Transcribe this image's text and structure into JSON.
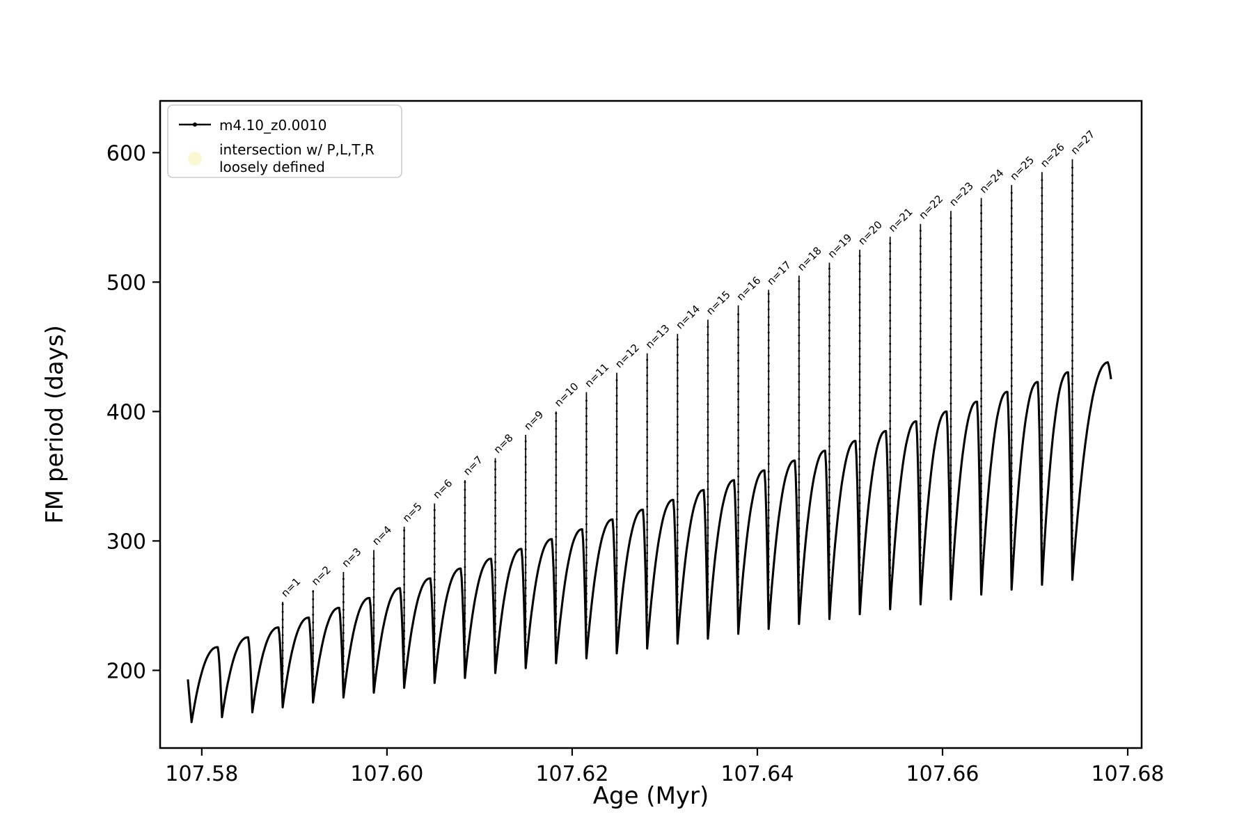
{
  "figure": {
    "background": "#ffffff",
    "line_color": "#000000",
    "spine_color": "#000000",
    "legend_border_color": "#cccccc"
  },
  "chart_data": {
    "type": "line",
    "title": "",
    "xlabel": "Age (Myr)",
    "ylabel": "FM period (days)",
    "xlim": [
      107.5755,
      107.6815
    ],
    "ylim": [
      140,
      640
    ],
    "xticks": [
      107.58,
      107.6,
      107.62,
      107.64,
      107.66,
      107.68
    ],
    "xtick_labels": [
      "107.58",
      "107.60",
      "107.62",
      "107.64",
      "107.66",
      "107.68"
    ],
    "yticks": [
      200,
      300,
      400,
      500,
      600
    ],
    "ytick_labels": [
      "200",
      "300",
      "400",
      "500",
      "600"
    ],
    "grid": false,
    "legend": {
      "position": "upper-left",
      "series_label": "m4.10_z0.0010",
      "intersection_line1": "intersection w/ P,L,T,R",
      "intersection_line2": "loosely defined",
      "intersection_marker_color": "#f7f3ae"
    },
    "curve": {
      "description": "sawtooth-scalloped rising curve: repeated arcs with sharp cusps; a narrow vertical spike rises from each cusp, spikes labeled n=1..n=27",
      "x_start": 107.5785,
      "y_start": 193,
      "cusp_start_x": 107.5789,
      "cusp_spacing": 0.00328,
      "num_cusps": 30,
      "cusp_min_start": 160,
      "cusp_min_end": 270,
      "arc_max_start": 218,
      "arc_max_end": 438,
      "x_end": 107.6782,
      "y_end": 425
    },
    "spikes": [
      {
        "n": 1,
        "label": "n=1",
        "x": 107.58874,
        "top": 253
      },
      {
        "n": 2,
        "label": "n=2",
        "x": 107.59202,
        "top": 262
      },
      {
        "n": 3,
        "label": "n=3",
        "x": 107.5953,
        "top": 276
      },
      {
        "n": 4,
        "label": "n=4",
        "x": 107.59858,
        "top": 293
      },
      {
        "n": 5,
        "label": "n=5",
        "x": 107.60186,
        "top": 311
      },
      {
        "n": 6,
        "label": "n=6",
        "x": 107.60514,
        "top": 329
      },
      {
        "n": 7,
        "label": "n=7",
        "x": 107.60842,
        "top": 347
      },
      {
        "n": 8,
        "label": "n=8",
        "x": 107.6117,
        "top": 364
      },
      {
        "n": 9,
        "label": "n=9",
        "x": 107.61498,
        "top": 382
      },
      {
        "n": 10,
        "label": "n=10",
        "x": 107.61826,
        "top": 400
      },
      {
        "n": 11,
        "label": "n=11",
        "x": 107.62154,
        "top": 415
      },
      {
        "n": 12,
        "label": "n=12",
        "x": 107.62482,
        "top": 430
      },
      {
        "n": 13,
        "label": "n=13",
        "x": 107.6281,
        "top": 445
      },
      {
        "n": 14,
        "label": "n=14",
        "x": 107.63138,
        "top": 460
      },
      {
        "n": 15,
        "label": "n=15",
        "x": 107.63466,
        "top": 471
      },
      {
        "n": 16,
        "label": "n=16",
        "x": 107.63794,
        "top": 482
      },
      {
        "n": 17,
        "label": "n=17",
        "x": 107.64122,
        "top": 494
      },
      {
        "n": 18,
        "label": "n=18",
        "x": 107.6445,
        "top": 505
      },
      {
        "n": 19,
        "label": "n=19",
        "x": 107.64778,
        "top": 515
      },
      {
        "n": 20,
        "label": "n=20",
        "x": 107.65106,
        "top": 525
      },
      {
        "n": 21,
        "label": "n=21",
        "x": 107.65434,
        "top": 535
      },
      {
        "n": 22,
        "label": "n=22",
        "x": 107.65762,
        "top": 545
      },
      {
        "n": 23,
        "label": "n=23",
        "x": 107.6609,
        "top": 555
      },
      {
        "n": 24,
        "label": "n=24",
        "x": 107.66418,
        "top": 565
      },
      {
        "n": 25,
        "label": "n=25",
        "x": 107.66746,
        "top": 575
      },
      {
        "n": 26,
        "label": "n=26",
        "x": 107.67074,
        "top": 585
      },
      {
        "n": 27,
        "label": "n=27",
        "x": 107.67402,
        "top": 595
      }
    ]
  }
}
